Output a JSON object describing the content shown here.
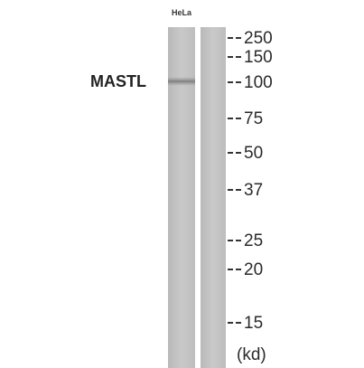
{
  "lane_labels": [
    "HeLa"
  ],
  "protein_label": "MASTL",
  "markers": [
    "250",
    "150",
    "100",
    "75",
    "50",
    "37",
    "25",
    "20",
    "15"
  ],
  "unit_label": "(kd)"
}
